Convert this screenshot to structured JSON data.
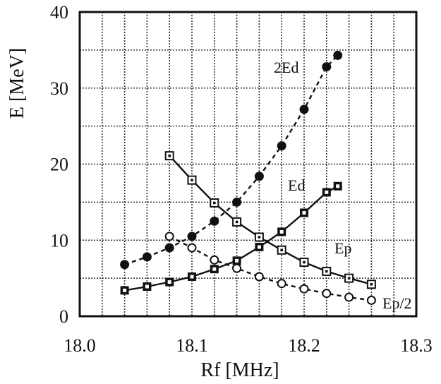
{
  "chart_data": {
    "type": "line",
    "title": "",
    "xlabel": "Rf [MHz]",
    "ylabel": "E [MeV]",
    "xlim": [
      18.0,
      18.3
    ],
    "ylim": [
      0,
      40
    ],
    "x_ticks": [
      "18.0",
      "18.1",
      "18.2",
      "18.3"
    ],
    "y_ticks": [
      "0",
      "10",
      "20",
      "30",
      "40"
    ],
    "grid": true,
    "series": [
      {
        "name": "2Ed",
        "marker": "filled-circle",
        "line": "dashed",
        "x": [
          18.04,
          18.06,
          18.08,
          18.1,
          18.12,
          18.14,
          18.16,
          18.18,
          18.2,
          18.22,
          18.23
        ],
        "y": [
          6.8,
          7.8,
          9.0,
          10.5,
          12.5,
          15.0,
          18.4,
          22.4,
          27.2,
          32.8,
          34.3
        ]
      },
      {
        "name": "Ed",
        "marker": "filled-square",
        "line": "solid",
        "x": [
          18.04,
          18.06,
          18.08,
          18.1,
          18.12,
          18.14,
          18.16,
          18.18,
          18.2,
          18.22,
          18.23
        ],
        "y": [
          3.4,
          3.9,
          4.5,
          5.2,
          6.2,
          7.3,
          9.1,
          11.1,
          13.6,
          16.3,
          17.1
        ]
      },
      {
        "name": "Ep",
        "marker": "open-square",
        "line": "solid",
        "x": [
          18.08,
          18.1,
          18.12,
          18.14,
          18.16,
          18.18,
          18.2,
          18.22,
          18.24,
          18.26
        ],
        "y": [
          21.1,
          17.9,
          14.9,
          12.4,
          10.4,
          8.7,
          7.1,
          5.9,
          5.0,
          4.2
        ]
      },
      {
        "name": "Ep/2",
        "marker": "open-circle",
        "line": "dashed",
        "x": [
          18.08,
          18.1,
          18.12,
          18.14,
          18.16,
          18.18,
          18.2,
          18.22,
          18.24,
          18.26
        ],
        "y": [
          10.5,
          9.0,
          7.4,
          6.3,
          5.2,
          4.3,
          3.6,
          3.0,
          2.5,
          2.1
        ]
      }
    ]
  }
}
